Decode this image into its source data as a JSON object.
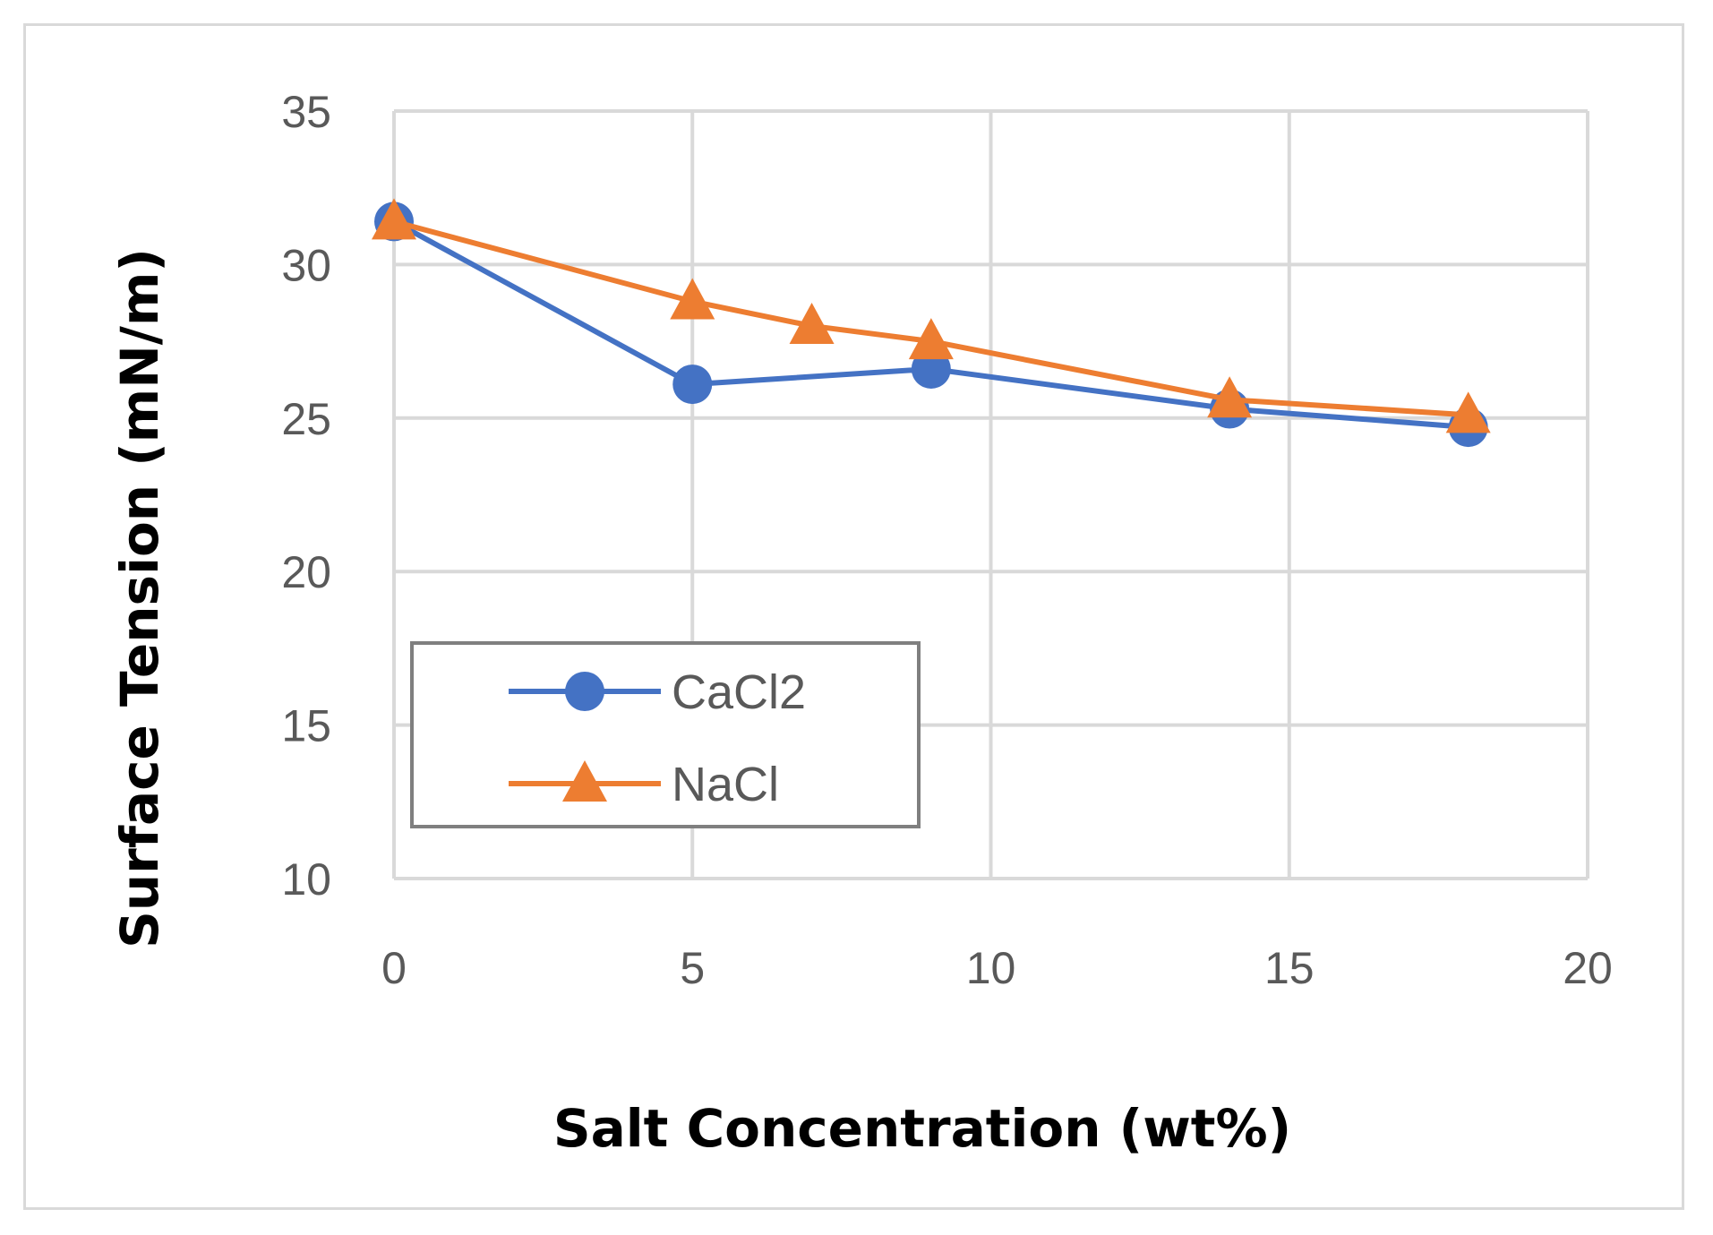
{
  "chart_data": {
    "type": "scatter",
    "title": "",
    "xlabel": "Salt Concentration (wt%)",
    "ylabel": "Surface Tension (mN/m)",
    "xlim": [
      0,
      20
    ],
    "ylim": [
      10,
      35
    ],
    "xticks": [
      "0",
      "5",
      "10",
      "15",
      "20"
    ],
    "yticks": [
      "10",
      "15",
      "20",
      "25",
      "30",
      "35"
    ],
    "grid": true,
    "legend_position": "bottom-left",
    "series": [
      {
        "name": "CaCl2",
        "marker": "circle",
        "color": "#4472c4",
        "x": [
          0,
          5,
          9,
          14,
          18
        ],
        "y": [
          31.4,
          26.1,
          26.6,
          25.3,
          24.7
        ]
      },
      {
        "name": "NaCl",
        "marker": "triangle",
        "color": "#ed7d31",
        "x": [
          0,
          5,
          7,
          9,
          14,
          18
        ],
        "y": [
          31.4,
          28.8,
          28.0,
          27.5,
          25.6,
          25.1
        ]
      }
    ]
  }
}
